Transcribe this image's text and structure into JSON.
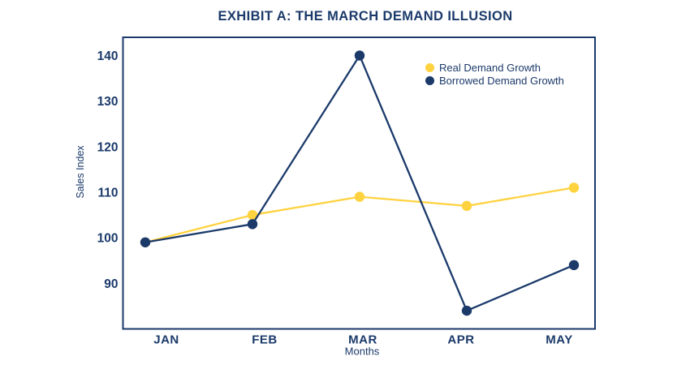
{
  "title": "EXHIBIT A: THE MARCH DEMAND ILLUSION",
  "colors": {
    "navy": "#1b3a6a",
    "yellow": "#ffd23f",
    "background": "#ffffff"
  },
  "chart_data": {
    "type": "line",
    "title": "EXHIBIT A: THE MARCH DEMAND ILLUSION",
    "categories": [
      "JAN",
      "FEB",
      "MAR",
      "APR",
      "MAY"
    ],
    "series": [
      {
        "name": "Real Demand Growth",
        "color": "#ffd23f",
        "values": [
          99,
          105,
          109,
          107,
          111
        ]
      },
      {
        "name": "Borrowed Demand Growth",
        "color": "#1b3a6a",
        "values": [
          99,
          103,
          140,
          84,
          94
        ]
      }
    ],
    "xlabel": "Months",
    "ylabel": "Sales Index",
    "y_ticks": [
      90,
      100,
      110,
      120,
      130,
      140
    ],
    "ylim": [
      80,
      144
    ],
    "grid": false,
    "legend_position": "top-right-inside"
  }
}
